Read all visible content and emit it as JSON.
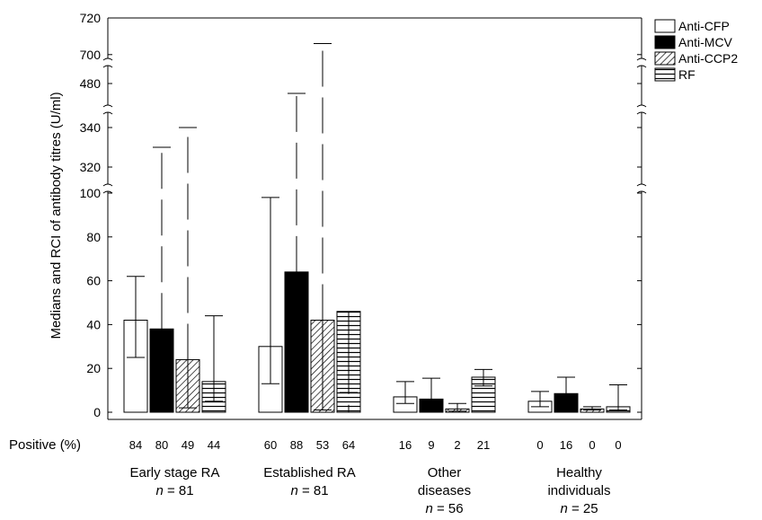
{
  "chart_data": {
    "type": "bar",
    "ylabel": "Medians and RCI of antibody  titres (U/ml)",
    "y_axis_segments": [
      {
        "ticks": [
          0,
          20,
          40,
          60,
          80,
          100
        ],
        "range": [
          0,
          100
        ]
      },
      {
        "ticks": [
          320,
          340
        ],
        "range": [
          315,
          345
        ]
      },
      {
        "ticks": [
          480
        ],
        "range": [
          475,
          485
        ]
      },
      {
        "ticks": [
          700,
          720
        ],
        "range": [
          695,
          720
        ]
      }
    ],
    "y_tick_labels": [
      "0",
      "20",
      "40",
      "60",
      "80",
      "100",
      "320",
      "340",
      "480",
      "700",
      "720"
    ],
    "legend_position": "top-right",
    "series": [
      {
        "name": "Anti-CFP",
        "pattern": "white"
      },
      {
        "name": "Anti-MCV",
        "pattern": "black"
      },
      {
        "name": "Anti-CCP2",
        "pattern": "diagonal-hatch"
      },
      {
        "name": "RF",
        "pattern": "horizontal-lines"
      }
    ],
    "groups": [
      {
        "label": "Early stage RA",
        "n_label": "n = 81",
        "positive": [
          "84",
          "80",
          "49",
          "44"
        ],
        "medians": [
          42,
          38,
          24,
          14
        ],
        "rci_low": [
          25,
          null,
          2,
          5
        ],
        "rci_high": [
          62,
          330,
          340,
          44
        ]
      },
      {
        "label": "Established RA",
        "n_label": "n = 81",
        "positive": [
          "60",
          "88",
          "53",
          "64"
        ],
        "medians": [
          30,
          64,
          42,
          46
        ],
        "rci_low": [
          13,
          null,
          1,
          9
        ],
        "rci_high": [
          98,
          475,
          706,
          102
        ]
      },
      {
        "label": "Other diseases",
        "n_label": "n = 56",
        "positive": [
          "16",
          "9",
          "2",
          "21"
        ],
        "medians": [
          7,
          6,
          1.5,
          16
        ],
        "rci_low": [
          4,
          null,
          0.5,
          12
        ],
        "rci_high": [
          14,
          15.5,
          4,
          19.5
        ]
      },
      {
        "label": "Healthy individuals",
        "n_label": "n = 25",
        "positive": [
          "0",
          "16",
          "0",
          "0"
        ],
        "medians": [
          5,
          8.5,
          1.5,
          2.5
        ],
        "rci_low": [
          2.5,
          null,
          1,
          1
        ],
        "rci_high": [
          9.5,
          16,
          2.5,
          12.5
        ]
      }
    ],
    "positive_label": "Positive (%)"
  }
}
